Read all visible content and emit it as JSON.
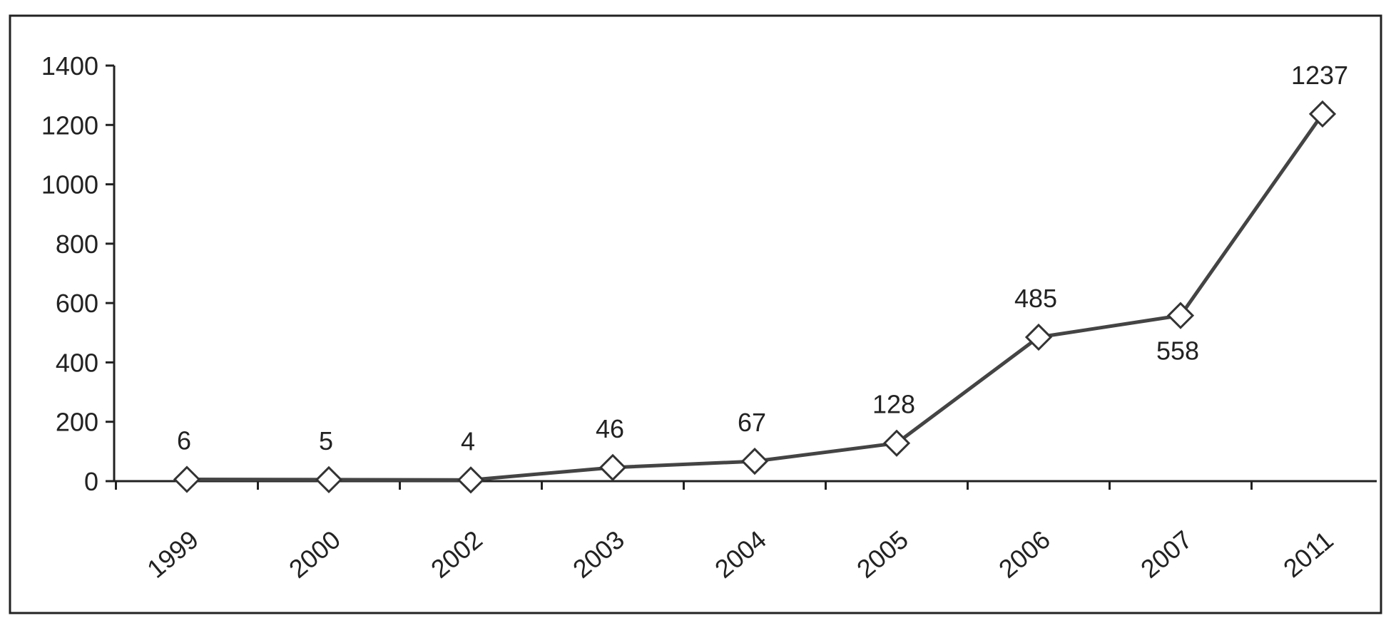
{
  "chart_data": {
    "type": "line",
    "title": "",
    "xlabel": "",
    "ylabel": "",
    "categories": [
      "1999",
      "2000",
      "2002",
      "2003",
      "2004",
      "2005",
      "2006",
      "2007",
      "2011"
    ],
    "series": [
      {
        "values": [
          6,
          5,
          4,
          46,
          67,
          128,
          485,
          558,
          1237
        ],
        "labels": [
          "6",
          "5",
          "4",
          "46",
          "67",
          "128",
          "485",
          "558",
          "1237"
        ]
      }
    ],
    "ylim": [
      0,
      1400
    ],
    "yticks": [
      0,
      200,
      400,
      600,
      800,
      1000,
      1200,
      1400
    ],
    "yticklabels": [
      "0",
      "200",
      "400",
      "600",
      "800",
      "1000",
      "1200",
      "1400"
    ],
    "grid": false,
    "legend": "none",
    "marker": "diamond",
    "colors": {
      "line": "#444444",
      "marker_fill": "#ffffff",
      "marker_stroke": "#333333",
      "axis": "#222222",
      "frame": "#222222"
    }
  }
}
